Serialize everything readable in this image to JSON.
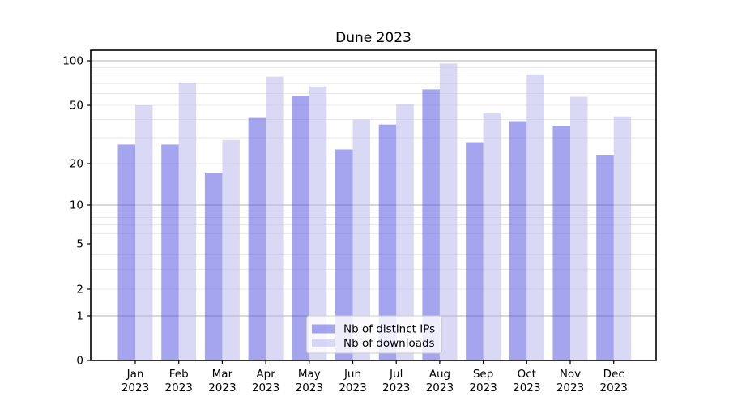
{
  "chart_data": {
    "type": "bar",
    "title": "Dune 2023",
    "categories": [
      "Jan",
      "Feb",
      "Mar",
      "Apr",
      "May",
      "Jun",
      "Jul",
      "Aug",
      "Sep",
      "Oct",
      "Nov",
      "Dec"
    ],
    "x_tick_year_line": "2023",
    "series": [
      {
        "name": "Nb of distinct IPs",
        "color": "rgba(75,75,224,0.5)",
        "solid_color": "#a5a5ef",
        "values": [
          27,
          27,
          17,
          41,
          58,
          25,
          37,
          64,
          28,
          39,
          36,
          23
        ]
      },
      {
        "name": "Nb of downloads",
        "color": "rgba(180,180,235,0.5)",
        "solid_color": "#d9d9f5",
        "values": [
          50,
          71,
          29,
          78,
          67,
          40,
          51,
          96,
          44,
          81,
          57,
          42
        ]
      }
    ],
    "y_axis": {
      "scale": "symlog",
      "tick_values": [
        0,
        1,
        2,
        5,
        10,
        20,
        50,
        100
      ],
      "tick_labels": [
        "0",
        "1",
        "2",
        "5",
        "10",
        "20",
        "50",
        "100"
      ],
      "major_gridlines": [
        1,
        10,
        100
      ],
      "minor_gridlines": [
        2,
        3,
        4,
        6,
        7,
        8,
        9,
        20,
        30,
        40,
        50,
        60,
        70,
        80,
        90
      ],
      "range_top": 118
    },
    "legend": {
      "position": "lower-center"
    },
    "grid": true,
    "colors": {
      "major_gridline": "#b2b2b2",
      "minor_gridline": "#e8e8e8",
      "spine": "#000000",
      "tick": "#000000",
      "text": "#000000",
      "legend_border": "#cccccc",
      "legend_bg": "rgba(255,255,255,0.8)"
    }
  }
}
